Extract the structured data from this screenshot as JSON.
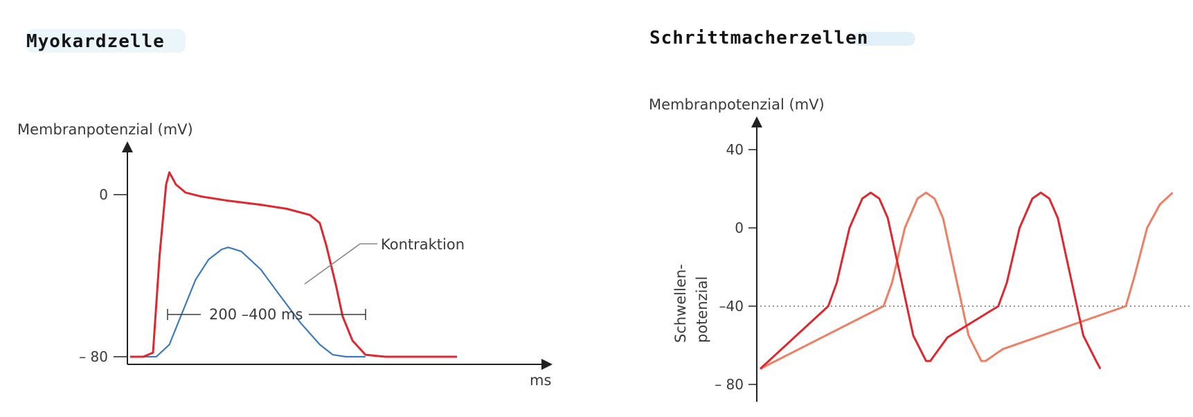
{
  "chart_data": [
    {
      "type": "line",
      "title": "Myokardzelle",
      "ylabel": "Membranpotenzial (mV)",
      "xlabel": "ms",
      "y_ticks": [
        {
          "value": 0,
          "label": "0"
        },
        {
          "value": -80,
          "label": "– 80"
        }
      ],
      "ylim": [
        -85,
        25
      ],
      "xlim": [
        0,
        100
      ],
      "series": [
        {
          "key": "ap",
          "color": "#e2262d",
          "points": [
            [
              0,
              -80
            ],
            [
              4,
              -80
            ],
            [
              7,
              -78
            ],
            [
              9,
              -30
            ],
            [
              11,
              5
            ],
            [
              12,
              11
            ],
            [
              14,
              5
            ],
            [
              17,
              1
            ],
            [
              22,
              -1
            ],
            [
              30,
              -3
            ],
            [
              40,
              -5
            ],
            [
              48,
              -7
            ],
            [
              55,
              -10
            ],
            [
              58,
              -14
            ],
            [
              60,
              -25
            ],
            [
              63,
              -45
            ],
            [
              65,
              -60
            ],
            [
              68,
              -72
            ],
            [
              72,
              -79
            ],
            [
              78,
              -80
            ],
            [
              90,
              -80
            ],
            [
              100,
              -80
            ]
          ]
        },
        {
          "key": "contraction",
          "color": "#3b7bbd",
          "points": [
            [
              0,
              -80
            ],
            [
              8,
              -80
            ],
            [
              12,
              -74
            ],
            [
              16,
              -58
            ],
            [
              20,
              -42
            ],
            [
              24,
              -32
            ],
            [
              28,
              -27
            ],
            [
              30,
              -26
            ],
            [
              34,
              -28
            ],
            [
              40,
              -37
            ],
            [
              45,
              -48
            ],
            [
              52,
              -63
            ],
            [
              58,
              -74
            ],
            [
              62,
              -79
            ],
            [
              66,
              -80
            ],
            [
              72,
              -80
            ]
          ]
        }
      ],
      "annotations": [
        {
          "key": "kontraktion",
          "text": "Kontraktion"
        },
        {
          "key": "duration",
          "text": "200 –400 ms"
        }
      ]
    },
    {
      "type": "line",
      "title": "Schrittmacherzellen",
      "ylabel": "Membranpotenzial (mV)",
      "y_ticks": [
        {
          "value": 40,
          "label": "40"
        },
        {
          "value": 0,
          "label": "0"
        },
        {
          "value": -40,
          "label": "–40"
        },
        {
          "value": -80,
          "label": "– 80"
        }
      ],
      "ylim": [
        -85,
        45
      ],
      "xlim": [
        0,
        100
      ],
      "threshold": {
        "value": -40,
        "label_lines": [
          "Schwellen-",
          "potenzial"
        ]
      },
      "series": [
        {
          "key": "cell1",
          "color": "#e2262d",
          "points": [
            [
              0,
              -72
            ],
            [
              16,
              -40
            ],
            [
              18,
              -28
            ],
            [
              21,
              0
            ],
            [
              24,
              15
            ],
            [
              26,
              18
            ],
            [
              28,
              15
            ],
            [
              30,
              5
            ],
            [
              33,
              -25
            ],
            [
              36,
              -55
            ],
            [
              39,
              -68
            ],
            [
              40,
              -68
            ],
            [
              44,
              -56
            ],
            [
              56,
              -40
            ],
            [
              58,
              -28
            ],
            [
              61,
              0
            ],
            [
              64,
              15
            ],
            [
              66,
              18
            ],
            [
              68,
              15
            ],
            [
              70,
              5
            ],
            [
              73,
              -25
            ],
            [
              76,
              -55
            ],
            [
              79,
              -68
            ],
            [
              80,
              -72
            ]
          ]
        },
        {
          "key": "cell2",
          "color": "#f07e63",
          "points": [
            [
              0,
              -72
            ],
            [
              29,
              -40
            ],
            [
              31,
              -28
            ],
            [
              34,
              0
            ],
            [
              37,
              15
            ],
            [
              39,
              18
            ],
            [
              41,
              15
            ],
            [
              43,
              5
            ],
            [
              46,
              -25
            ],
            [
              49,
              -55
            ],
            [
              52,
              -68
            ],
            [
              53,
              -68
            ],
            [
              57,
              -62
            ],
            [
              86,
              -40
            ],
            [
              88,
              -25
            ],
            [
              91,
              0
            ],
            [
              94,
              12
            ],
            [
              97,
              18
            ]
          ]
        }
      ]
    }
  ]
}
